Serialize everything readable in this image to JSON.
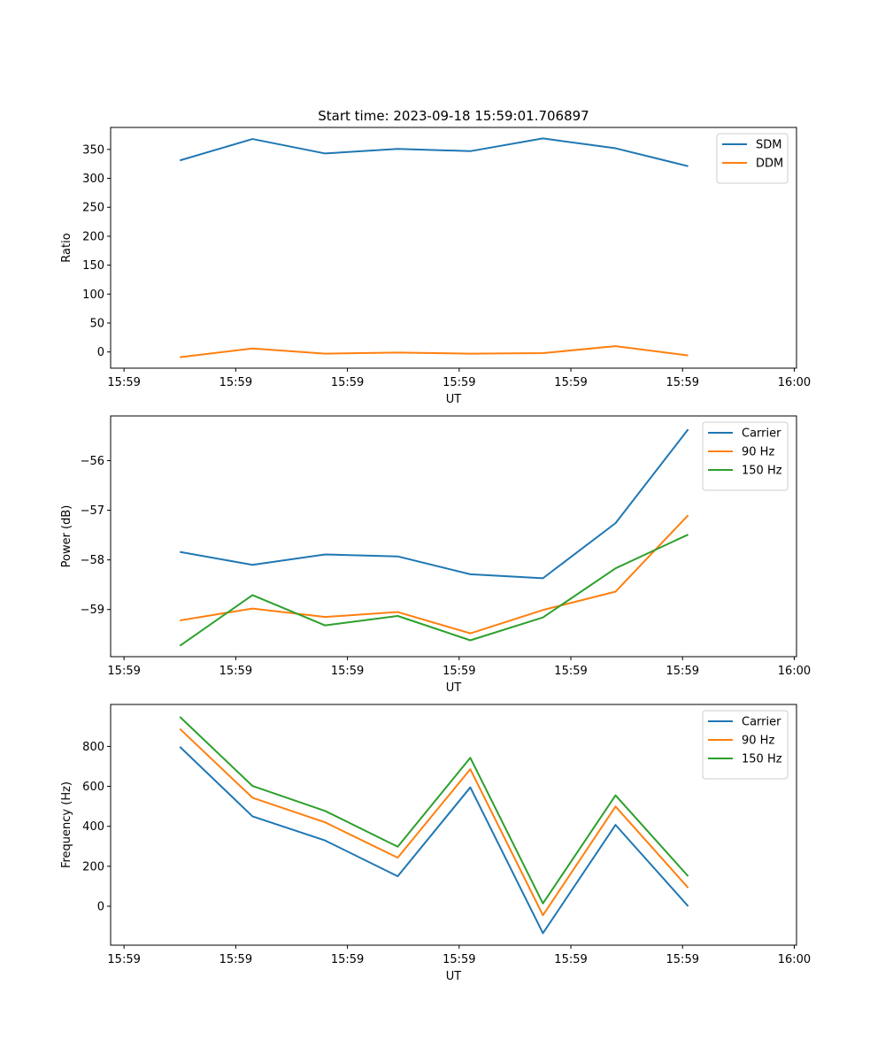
{
  "colors": {
    "blue": "#1f77b4",
    "orange": "#ff7f0e",
    "green": "#2ca02c"
  },
  "chart_data": [
    {
      "type": "line",
      "title": "Start time: 2023-09-18 15:59:01.706897",
      "xlabel": "UT",
      "ylabel": "Ratio",
      "x": [
        0.5,
        1.15,
        1.8,
        2.45,
        3.1,
        3.75,
        4.4,
        5.05
      ],
      "xlim": [
        -0.12,
        6.02
      ],
      "xticks": [
        0,
        1,
        2,
        3,
        4,
        5,
        6
      ],
      "xticklabels": [
        "15:59",
        "15:59",
        "15:59",
        "15:59",
        "15:59",
        "15:59",
        "16:00"
      ],
      "ylim": [
        -28,
        388
      ],
      "yticks": [
        0,
        50,
        100,
        150,
        200,
        250,
        300,
        350
      ],
      "yticklabels": [
        "0",
        "50",
        "100",
        "150",
        "200",
        "250",
        "300",
        "350"
      ],
      "legend": "top-right",
      "series": [
        {
          "name": "SDM",
          "color": "#1f77b4",
          "values": [
            331,
            368,
            343,
            351,
            347,
            369,
            352,
            321
          ]
        },
        {
          "name": "DDM",
          "color": "#ff7f0e",
          "values": [
            -9,
            6,
            -3,
            -1,
            -3,
            -2,
            10,
            -6
          ]
        }
      ]
    },
    {
      "type": "line",
      "title": "",
      "xlabel": "UT",
      "ylabel": "Power (dB)",
      "x": [
        0.5,
        1.15,
        1.8,
        2.45,
        3.1,
        3.75,
        4.4,
        5.05
      ],
      "xlim": [
        -0.12,
        6.02
      ],
      "xticks": [
        0,
        1,
        2,
        3,
        4,
        5,
        6
      ],
      "xticklabels": [
        "15:59",
        "15:59",
        "15:59",
        "15:59",
        "15:59",
        "15:59",
        "16:00"
      ],
      "ylim": [
        -59.95,
        -55.1
      ],
      "yticks": [
        -59,
        -58,
        -57,
        -56
      ],
      "yticklabels": [
        "−59",
        "−58",
        "−57",
        "−56"
      ],
      "legend": "top-right",
      "series": [
        {
          "name": "Carrier",
          "color": "#1f77b4",
          "values": [
            -57.84,
            -58.1,
            -57.89,
            -57.93,
            -58.29,
            -58.37,
            -57.26,
            -55.37
          ]
        },
        {
          "name": "90 Hz",
          "color": "#ff7f0e",
          "values": [
            -59.22,
            -58.98,
            -59.15,
            -59.05,
            -59.48,
            -59.01,
            -58.64,
            -57.1
          ]
        },
        {
          "name": "150 Hz",
          "color": "#2ca02c",
          "values": [
            -59.73,
            -58.71,
            -59.32,
            -59.13,
            -59.62,
            -59.16,
            -58.17,
            -57.49
          ]
        }
      ]
    },
    {
      "type": "line",
      "title": "",
      "xlabel": "UT",
      "ylabel": "Frequency (Hz)",
      "x": [
        0.5,
        1.15,
        1.8,
        2.45,
        3.1,
        3.75,
        4.4,
        5.05
      ],
      "xlim": [
        -0.12,
        6.02
      ],
      "xticks": [
        0,
        1,
        2,
        3,
        4,
        5,
        6
      ],
      "xticklabels": [
        "15:59",
        "15:59",
        "15:59",
        "15:59",
        "15:59",
        "15:59",
        "16:00"
      ],
      "ylim": [
        -195,
        1010
      ],
      "yticks": [
        0,
        200,
        400,
        600,
        800
      ],
      "yticklabels": [
        "0",
        "200",
        "400",
        "600",
        "800"
      ],
      "legend": "top-right",
      "series": [
        {
          "name": "Carrier",
          "color": "#1f77b4",
          "values": [
            798,
            450,
            329,
            150,
            595,
            -135,
            407,
            0
          ]
        },
        {
          "name": "90 Hz",
          "color": "#ff7f0e",
          "values": [
            888,
            543,
            420,
            243,
            686,
            -45,
            499,
            92
          ]
        },
        {
          "name": "150 Hz",
          "color": "#2ca02c",
          "values": [
            948,
            602,
            477,
            298,
            743,
            14,
            555,
            150
          ]
        }
      ]
    }
  ]
}
